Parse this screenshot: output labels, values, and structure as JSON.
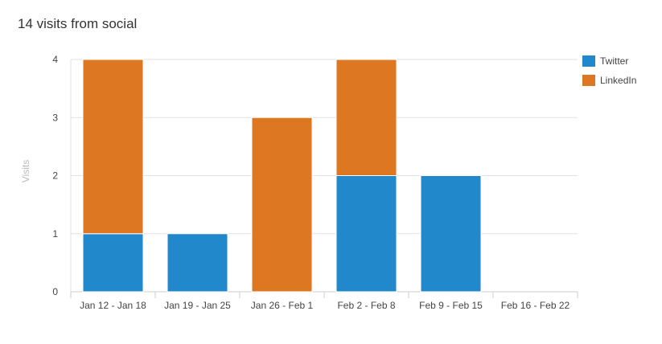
{
  "title": "14 visits from social",
  "chart_data": {
    "type": "bar",
    "stacked": true,
    "title": "14 visits from social",
    "xlabel": "",
    "ylabel": "Visits",
    "ylim": [
      0,
      4
    ],
    "yticks": [
      0,
      1,
      2,
      3,
      4
    ],
    "categories": [
      "Jan 12 - Jan 18",
      "Jan 19 - Jan 25",
      "Jan 26 - Feb 1",
      "Feb 2 - Feb 8",
      "Feb 9 - Feb 15",
      "Feb 16 - Feb 22"
    ],
    "series": [
      {
        "name": "Twitter",
        "color": "#2288cc",
        "values": [
          1,
          1,
          0,
          2,
          2,
          0
        ]
      },
      {
        "name": "LinkedIn",
        "color": "#dd7722",
        "values": [
          3,
          0,
          3,
          2,
          0,
          0
        ]
      }
    ],
    "grid": true,
    "legend_position": "right"
  }
}
